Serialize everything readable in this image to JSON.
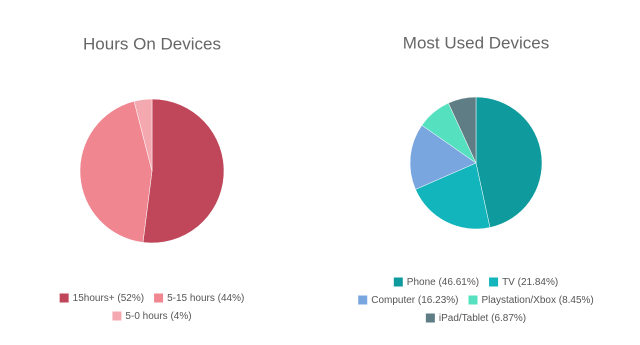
{
  "chart_data": [
    {
      "type": "pie",
      "title": "Hours On Devices",
      "categories": [
        "15hours+ (52%)",
        "5-15 hours (44%)",
        "5-0 hours (4%)"
      ],
      "values": [
        52,
        44,
        4
      ],
      "colors": [
        "#c0475a",
        "#ef8690",
        "#f4a9b0"
      ]
    },
    {
      "type": "pie",
      "title": "Most Used Devices",
      "categories": [
        "Phone (46.61%)",
        "TV (21.84%)",
        "Computer (16.23%)",
        "Playstation/Xbox (8.45%)",
        "iPad/Tablet (6.87%)"
      ],
      "values": [
        46.61,
        21.84,
        16.23,
        8.45,
        6.87
      ],
      "colors": [
        "#0f9a9e",
        "#12b5bb",
        "#7aa6e0",
        "#55e0c0",
        "#5f7d85"
      ]
    }
  ]
}
